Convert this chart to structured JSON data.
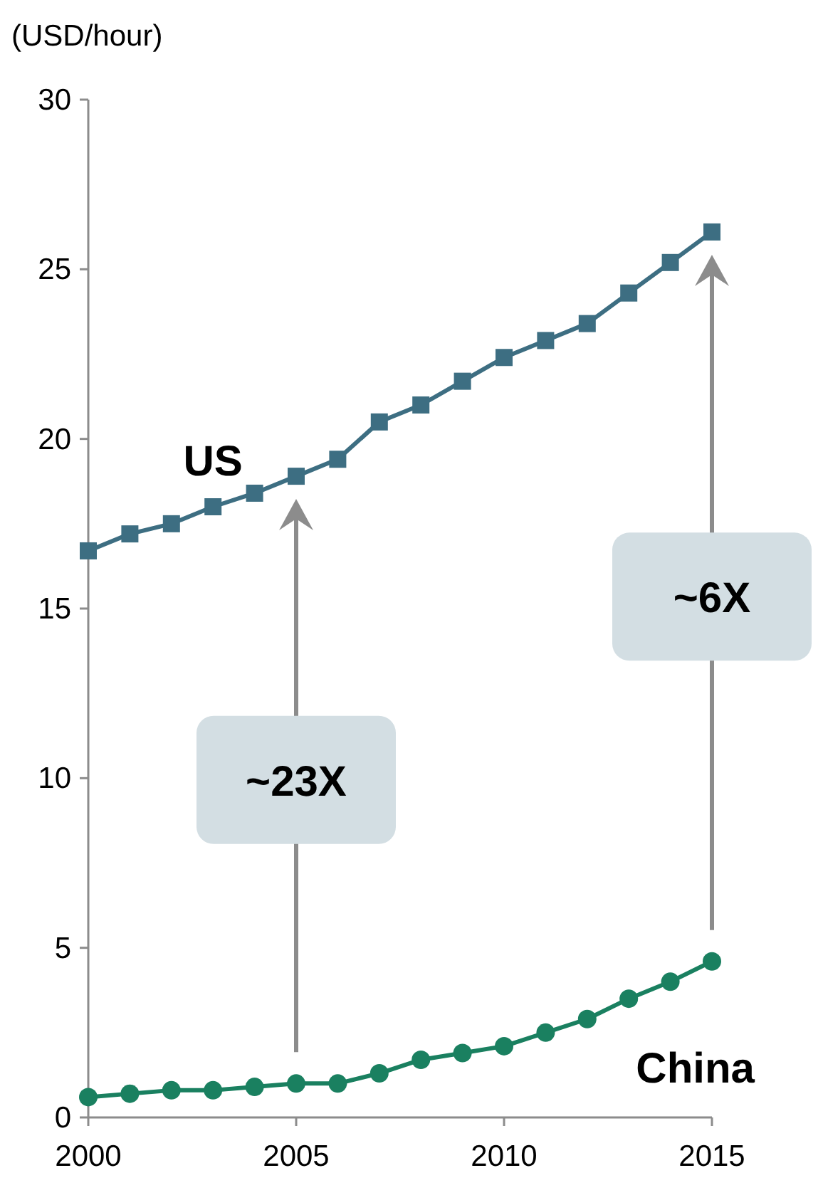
{
  "chart_data": {
    "type": "line",
    "ylabel": "(USD/hour)",
    "x": [
      2000,
      2001,
      2002,
      2003,
      2004,
      2005,
      2006,
      2007,
      2008,
      2009,
      2010,
      2011,
      2012,
      2013,
      2014,
      2015
    ],
    "series": [
      {
        "name": "US",
        "color": "#3d6e82",
        "marker": "square",
        "values": [
          16.7,
          17.2,
          17.5,
          18.0,
          18.4,
          18.9,
          19.4,
          20.5,
          21.0,
          21.7,
          22.4,
          22.9,
          23.4,
          24.3,
          25.2,
          26.1
        ]
      },
      {
        "name": "China",
        "color": "#1a8060",
        "marker": "circle",
        "values": [
          0.6,
          0.7,
          0.8,
          0.8,
          0.9,
          1.0,
          1.0,
          1.3,
          1.7,
          1.9,
          2.1,
          2.5,
          2.9,
          3.5,
          4.0,
          4.6
        ]
      }
    ],
    "annotations": [
      "~23X",
      "~6X"
    ],
    "xlim": [
      2000,
      2015
    ],
    "xticks": [
      2000,
      2005,
      2010,
      2015
    ],
    "ylim": [
      0,
      30
    ],
    "yticks": [
      0,
      5,
      10,
      15,
      20,
      25,
      30
    ],
    "grid": false,
    "legend": false,
    "line_style": "solid"
  }
}
